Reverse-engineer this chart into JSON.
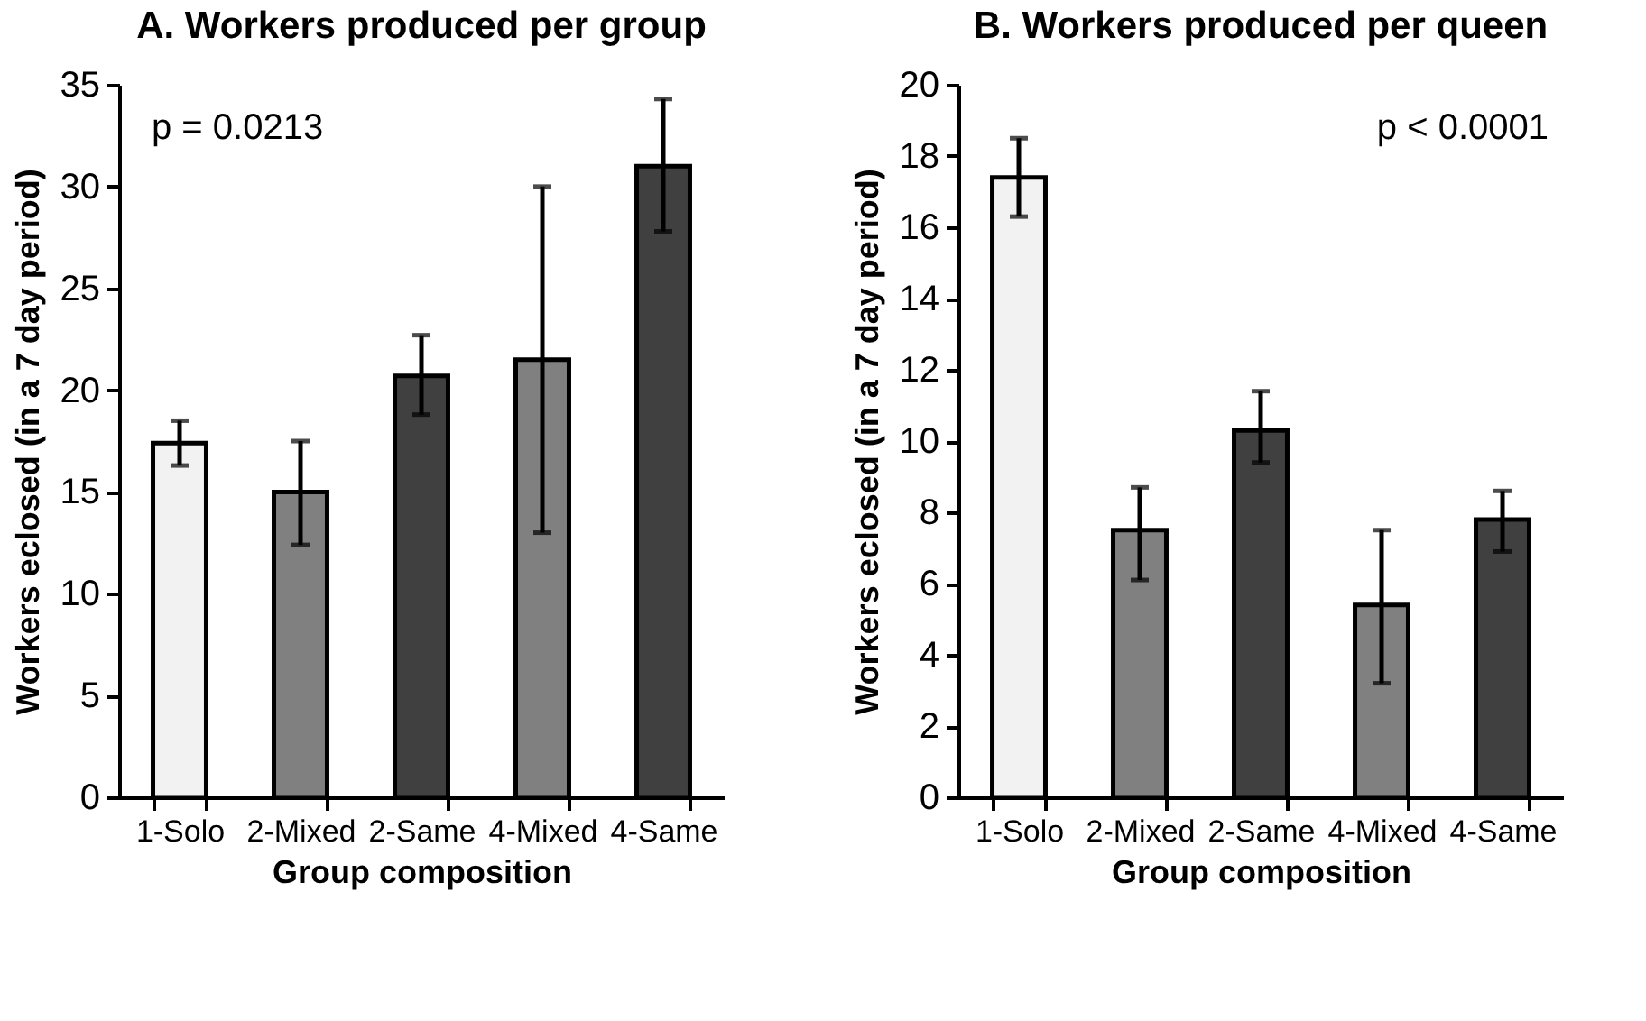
{
  "chart_data": [
    {
      "type": "bar",
      "title": "A. Workers produced per group",
      "xlabel": "Group composition",
      "ylabel": "Workers eclosed (in a 7 day period)",
      "categories": [
        "1-Solo",
        "2-Mixed",
        "2-Same",
        "4-Mixed",
        "4-Same"
      ],
      "values": [
        17.4,
        15.0,
        20.7,
        21.5,
        31.0
      ],
      "errors": [
        [
          16.3,
          18.5
        ],
        [
          12.4,
          17.5
        ],
        [
          18.8,
          22.7
        ],
        [
          13.0,
          30.0
        ],
        [
          27.8,
          34.3
        ]
      ],
      "colors": [
        "#f2f2f2",
        "#808080",
        "#404040",
        "#808080",
        "#404040"
      ],
      "ylim": [
        0,
        35
      ],
      "yticks": [
        0,
        5,
        10,
        15,
        20,
        25,
        30,
        35
      ],
      "grid": false,
      "annotations": [
        "p = 0.0213"
      ]
    },
    {
      "type": "bar",
      "title": "B. Workers produced per queen",
      "xlabel": "Group composition",
      "ylabel": "Workers eclosed (in a 7 day period)",
      "categories": [
        "1-Solo",
        "2-Mixed",
        "2-Same",
        "4-Mixed",
        "4-Same"
      ],
      "values": [
        17.4,
        7.5,
        10.3,
        5.4,
        7.8
      ],
      "errors": [
        [
          16.3,
          18.5
        ],
        [
          6.1,
          8.7
        ],
        [
          9.4,
          11.4
        ],
        [
          3.2,
          7.5
        ],
        [
          6.9,
          8.6
        ]
      ],
      "colors": [
        "#f2f2f2",
        "#808080",
        "#404040",
        "#808080",
        "#404040"
      ],
      "ylim": [
        0,
        20
      ],
      "yticks": [
        0,
        2,
        4,
        6,
        8,
        10,
        12,
        14,
        16,
        18,
        20
      ],
      "grid": false,
      "annotations": [
        "p < 0.0001"
      ]
    }
  ]
}
